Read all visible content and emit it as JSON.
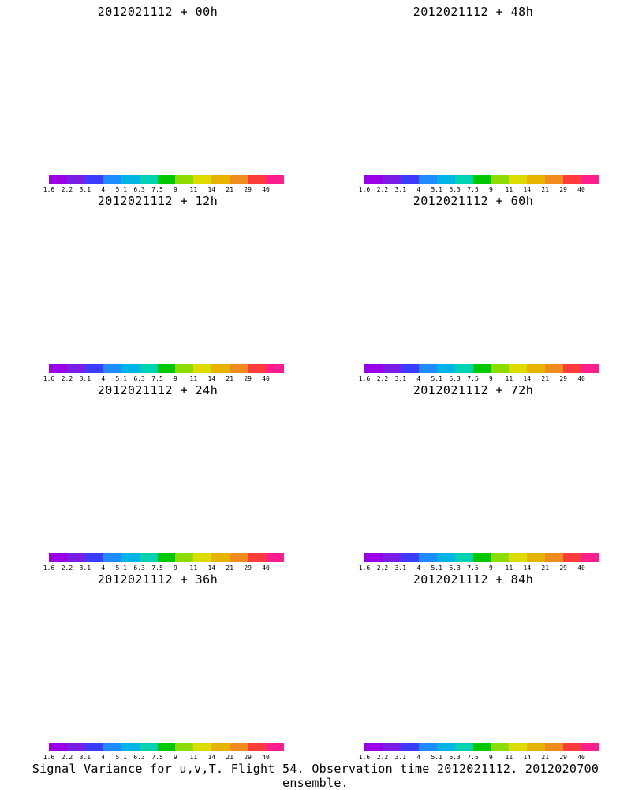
{
  "panels": [
    {
      "title": "2012021112 + 00h",
      "blob_level": 0
    },
    {
      "title": "2012021112 + 48h",
      "blob_level": 4
    },
    {
      "title": "2012021112 + 12h",
      "blob_level": 1
    },
    {
      "title": "2012021112 + 60h",
      "blob_level": 5
    },
    {
      "title": "2012021112 + 24h",
      "blob_level": 2
    },
    {
      "title": "2012021112 + 72h",
      "blob_level": 6
    },
    {
      "title": "2012021112 + 36h",
      "blob_level": 3
    },
    {
      "title": "2012021112 + 84h",
      "blob_level": 7
    }
  ],
  "colorbar": {
    "labels": [
      "1.6",
      "2.2",
      "3.1",
      "4",
      "5.1",
      "6.3",
      "7.5",
      "9",
      "11",
      "14",
      "21",
      "29",
      "40"
    ],
    "colors": [
      "#9a00e6",
      "#7a1ee6",
      "#3c3cff",
      "#1e8cff",
      "#00b4e6",
      "#00d2b4",
      "#00c800",
      "#8cdc00",
      "#dcdc00",
      "#e6b400",
      "#f08c1e",
      "#ff3c3c",
      "#ff1e8c"
    ]
  },
  "caption": "Signal Variance for u,v,T. Flight 54. Observation time 2012021112. 2012020700 ensemble."
}
